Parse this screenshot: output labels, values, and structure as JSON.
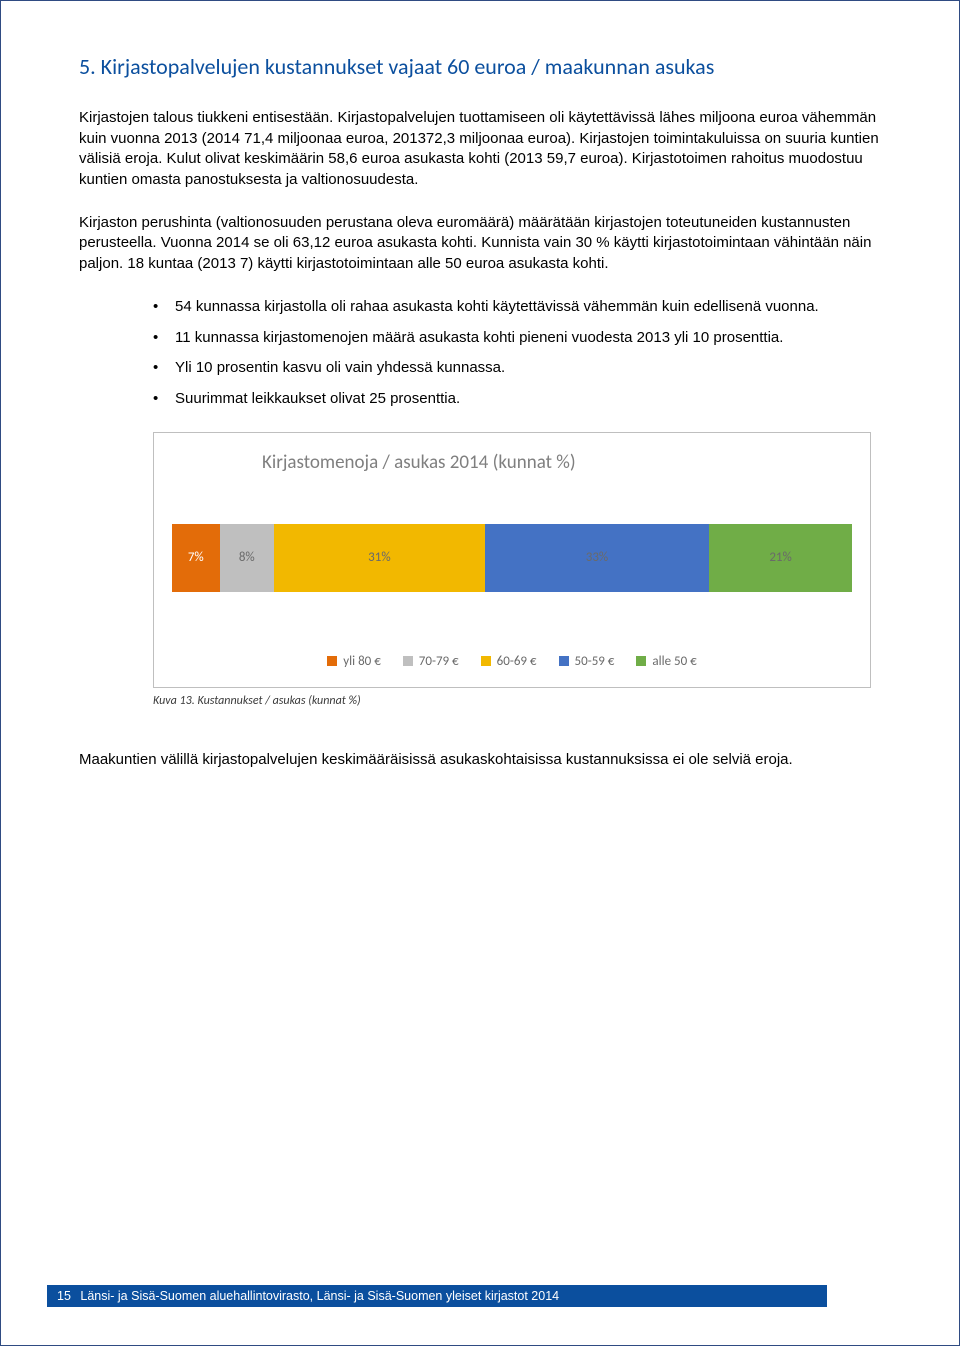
{
  "heading": "5. Kirjastopalvelujen kustannukset vajaat 60 euroa / maakunnan asukas",
  "para1": "Kirjastojen talous tiukkeni entisestään. Kirjastopalvelujen tuottamiseen oli käytettävissä lähes miljoona euroa vähemmän kuin vuonna 2013 (2014 71,4 miljoonaa euroa, 201372,3 miljoonaa euroa). Kirjastojen toimintakuluissa on suuria kuntien välisiä eroja. Kulut olivat keskimäärin 58,6 euroa asukasta kohti (2013 59,7 euroa). Kirjastotoimen rahoitus muodostuu kuntien omasta panostuksesta ja valtionosuudesta.",
  "para2": "Kirjaston perushinta (valtionosuuden perustana oleva euromäärä) määrätään kirjastojen toteutuneiden kustannusten perusteella. Vuonna 2014 se oli 63,12 euroa asukasta kohti. Kunnista vain 30 % käytti kirjastotoimintaan vähintään näin paljon. 18 kuntaa (2013 7) käytti kirjastotoimintaan alle 50 euroa asukasta kohti.",
  "bullets": [
    "54 kunnassa kirjastolla oli rahaa asukasta kohti käytettävissä vähemmän kuin edellisenä vuonna.",
    "11 kunnassa kirjastomenojen määrä asukasta kohti pieneni vuodesta 2013 yli 10 prosenttia.",
    "Yli 10 prosentin kasvu oli vain yhdessä kunnassa.",
    "Suurimmat leikkaukset olivat 25 prosenttia."
  ],
  "chart": {
    "title": "Kirjastomenoja / asukas 2014 (kunnat %)",
    "segments": [
      {
        "label": "7%",
        "value": 7,
        "color": "#e36c09",
        "textcolor": "#ffffff"
      },
      {
        "label": "8%",
        "value": 8,
        "color": "#bfbfbf",
        "textcolor": "#6a6a6a"
      },
      {
        "label": "31%",
        "value": 31,
        "color": "#f2b800",
        "textcolor": "#6a6a6a"
      },
      {
        "label": "33%",
        "value": 33,
        "color": "#4472c4",
        "textcolor": "#6a6a6a"
      },
      {
        "label": "21%",
        "value": 21,
        "color": "#70ad47",
        "textcolor": "#6a6a6a"
      }
    ],
    "legend": [
      {
        "label": "yli 80 €",
        "color": "#e36c09"
      },
      {
        "label": "70-79 €",
        "color": "#bfbfbf"
      },
      {
        "label": "60-69 €",
        "color": "#f2b800"
      },
      {
        "label": "50-59 €",
        "color": "#4472c4"
      },
      {
        "label": "alle 50 €",
        "color": "#70ad47"
      }
    ]
  },
  "caption": "Kuva 13. Kustannukset / asukas (kunnat %)",
  "closing": "Maakuntien välillä kirjastopalvelujen keskimääräisissä asukaskohtaisissa kustannuksissa ei ole selviä eroja.",
  "footer": {
    "page": "15",
    "text": "Länsi- ja Sisä-Suomen aluehallintovirasto, Länsi- ja Sisä-Suomen yleiset kirjastot 2014"
  }
}
